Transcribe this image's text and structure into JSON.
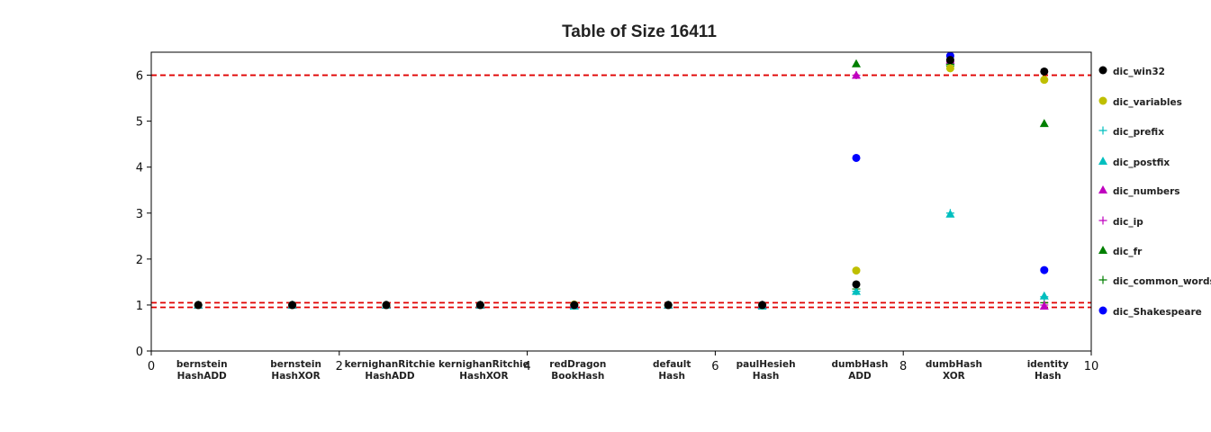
{
  "chart_data": {
    "type": "scatter",
    "title": "Table of Size 16411",
    "xlim": [
      0,
      10
    ],
    "ylim": [
      0,
      6.5
    ],
    "xticks": [
      "0",
      "2",
      "4",
      "6",
      "8",
      "10"
    ],
    "yticks": [
      "0",
      "1",
      "2",
      "3",
      "4",
      "5",
      "6"
    ],
    "reference_lines": [
      6.0,
      1.05,
      0.95
    ],
    "reference_line_color": "#e00000",
    "categories": [
      {
        "x": 0.5,
        "line1": "bernstein",
        "line2": "HashADD"
      },
      {
        "x": 1.5,
        "line1": "bernstein",
        "line2": "HashXOR"
      },
      {
        "x": 2.5,
        "line1": "kernighanRitchie",
        "line2": "HashADD"
      },
      {
        "x": 3.5,
        "line1": "kernighanRitchie",
        "line2": "HashXOR"
      },
      {
        "x": 4.5,
        "line1": "redDragon",
        "line2": "BookHash"
      },
      {
        "x": 5.5,
        "line1": "default",
        "line2": "Hash"
      },
      {
        "x": 6.5,
        "line1": "paulHesieh",
        "line2": "Hash"
      },
      {
        "x": 7.5,
        "line1": "dumbHash",
        "line2": "ADD"
      },
      {
        "x": 8.5,
        "line1": "dumbHash",
        "line2": "XOR"
      },
      {
        "x": 9.5,
        "line1": "identity",
        "line2": "Hash"
      }
    ],
    "x": [
      0.5,
      1.5,
      2.5,
      3.5,
      4.5,
      5.5,
      6.5,
      7.5,
      8.5,
      9.5
    ],
    "legend_position": "right-outside",
    "series": [
      {
        "name": "dic_Shakespeare",
        "marker": "circle",
        "color": "#0000ff",
        "values": [
          1.0,
          1.0,
          1.0,
          1.0,
          1.0,
          1.0,
          1.0,
          4.2,
          6.42,
          1.76
        ]
      },
      {
        "name": "dic_common_words",
        "marker": "plus",
        "color": "#007f00",
        "values": [
          1.0,
          1.0,
          1.0,
          1.0,
          1.0,
          1.0,
          1.0,
          1.35,
          6.2,
          1.05
        ]
      },
      {
        "name": "dic_fr",
        "marker": "triangle",
        "color": "#007f00",
        "values": [
          1.0,
          1.0,
          1.0,
          1.0,
          0.98,
          1.0,
          1.0,
          6.25,
          6.3,
          4.95
        ]
      },
      {
        "name": "dic_ip",
        "marker": "plus",
        "color": "#bf00bf",
        "values": [
          1.0,
          1.0,
          1.0,
          1.0,
          1.0,
          1.0,
          1.0,
          6.0,
          6.3,
          1.0
        ]
      },
      {
        "name": "dic_numbers",
        "marker": "triangle",
        "color": "#bf00bf",
        "values": [
          1.0,
          1.0,
          1.0,
          1.0,
          1.0,
          1.0,
          1.0,
          6.0,
          6.33,
          0.98
        ]
      },
      {
        "name": "dic_postfix",
        "marker": "triangle",
        "color": "#00bfbf",
        "values": [
          1.0,
          1.0,
          1.0,
          1.0,
          0.98,
          1.0,
          0.98,
          1.3,
          2.98,
          1.2
        ]
      },
      {
        "name": "dic_prefix",
        "marker": "plus",
        "color": "#00bfbf",
        "values": [
          1.0,
          1.0,
          1.0,
          1.0,
          1.0,
          1.0,
          1.0,
          1.3,
          3.0,
          1.18
        ]
      },
      {
        "name": "dic_variables",
        "marker": "circle",
        "color": "#bfbf00",
        "values": [
          1.0,
          1.0,
          1.0,
          1.0,
          1.01,
          1.0,
          1.0,
          1.75,
          6.15,
          5.9
        ]
      },
      {
        "name": "dic_win32",
        "marker": "circle",
        "color": "#000000",
        "values": [
          1.0,
          1.0,
          1.0,
          1.0,
          1.0,
          1.0,
          1.0,
          1.45,
          6.33,
          6.08
        ]
      }
    ],
    "legend": [
      {
        "name": "dic_win32",
        "marker": "circle",
        "color": "#000000"
      },
      {
        "name": "dic_variables",
        "marker": "circle",
        "color": "#bfbf00"
      },
      {
        "name": "dic_prefix",
        "marker": "plus",
        "color": "#00bfbf"
      },
      {
        "name": "dic_postfix",
        "marker": "triangle",
        "color": "#00bfbf"
      },
      {
        "name": "dic_numbers",
        "marker": "triangle",
        "color": "#bf00bf"
      },
      {
        "name": "dic_ip",
        "marker": "plus",
        "color": "#bf00bf"
      },
      {
        "name": "dic_fr",
        "marker": "triangle",
        "color": "#007f00"
      },
      {
        "name": "dic_common_words",
        "marker": "plus",
        "color": "#007f00"
      },
      {
        "name": "dic_Shakespeare",
        "marker": "circle",
        "color": "#0000ff"
      }
    ]
  }
}
